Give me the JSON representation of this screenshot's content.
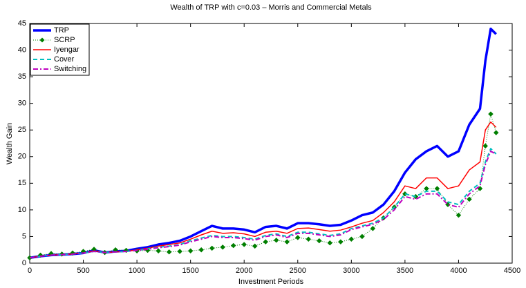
{
  "chart_data": {
    "type": "line",
    "title": "Wealth of TRP with c=0.03 – Morris and Commercial Metals",
    "x_label": "Investment Periods",
    "y_label": "Wealth Gain",
    "x": [
      0,
      100,
      200,
      300,
      400,
      500,
      600,
      700,
      800,
      900,
      1000,
      1100,
      1200,
      1300,
      1400,
      1500,
      1600,
      1700,
      1800,
      1900,
      2000,
      2100,
      2200,
      2300,
      2400,
      2500,
      2600,
      2700,
      2800,
      2900,
      3000,
      3100,
      3200,
      3300,
      3400,
      3500,
      3600,
      3700,
      3800,
      3900,
      4000,
      4100,
      4200,
      4250,
      4300,
      4350
    ],
    "series": [
      {
        "name": "TRP",
        "color": "#0000ff",
        "width": 3.5,
        "dash": "none",
        "marker": "none",
        "values": [
          1,
          1.3,
          1.5,
          1.6,
          1.7,
          1.9,
          2.4,
          2.0,
          2.2,
          2.3,
          2.7,
          3.0,
          3.5,
          3.8,
          4.2,
          5.0,
          6.0,
          7.0,
          6.5,
          6.5,
          6.3,
          5.8,
          6.8,
          7.0,
          6.5,
          7.5,
          7.5,
          7.3,
          7.0,
          7.2,
          8.0,
          9.0,
          9.5,
          11,
          13.5,
          17,
          19.5,
          21,
          22,
          20,
          21,
          26,
          29,
          38,
          44,
          43
        ]
      },
      {
        "name": "SCRP",
        "color": "#007f00",
        "width": 1,
        "dash": "1 2",
        "marker": "diamond",
        "values": [
          1,
          1.5,
          1.8,
          1.7,
          1.9,
          2.2,
          2.6,
          2.0,
          2.5,
          2.4,
          2.3,
          2.4,
          2.3,
          2.1,
          2.2,
          2.3,
          2.5,
          2.8,
          3.0,
          3.3,
          3.5,
          3.2,
          4.0,
          4.3,
          4.0,
          4.8,
          4.5,
          4.2,
          3.8,
          4.0,
          4.5,
          5.0,
          6.5,
          8.5,
          10.5,
          13,
          12.5,
          14,
          14,
          11,
          9,
          12,
          14,
          22,
          28,
          24.5
        ]
      },
      {
        "name": "Iyengar",
        "color": "#ff0000",
        "width": 1.5,
        "dash": "none",
        "marker": "none",
        "values": [
          1,
          1.3,
          1.5,
          1.6,
          1.7,
          1.9,
          2.3,
          2.0,
          2.1,
          2.2,
          2.5,
          2.8,
          3.2,
          3.5,
          3.8,
          4.5,
          5.3,
          6.0,
          5.6,
          5.7,
          5.5,
          5.0,
          5.8,
          6.0,
          5.6,
          6.5,
          6.6,
          6.3,
          6.0,
          6.2,
          6.8,
          7.5,
          8.0,
          9.5,
          11.5,
          14.5,
          14.0,
          16.0,
          16.0,
          14.0,
          14.5,
          17.5,
          19,
          25,
          26.5,
          25.5
        ]
      },
      {
        "name": "Cover",
        "color": "#00bfbf",
        "width": 2,
        "dash": "6 4",
        "marker": "none",
        "values": [
          1,
          1.3,
          1.5,
          1.6,
          1.7,
          1.9,
          2.2,
          2.0,
          2.1,
          2.2,
          2.4,
          2.7,
          3.0,
          3.2,
          3.5,
          4.2,
          4.7,
          5.2,
          5.0,
          5.0,
          4.8,
          4.5,
          5.2,
          5.5,
          5.0,
          5.8,
          5.8,
          5.5,
          5.2,
          5.5,
          6.5,
          7.0,
          7.5,
          8.5,
          10.5,
          13,
          12.5,
          13.5,
          13.5,
          11.5,
          11,
          13.5,
          15,
          19,
          21.5,
          20.5
        ]
      },
      {
        "name": "Switching",
        "color": "#bf00bf",
        "width": 2,
        "dash": "7 3 2 3",
        "marker": "none",
        "values": [
          1,
          1.3,
          1.5,
          1.6,
          1.7,
          1.9,
          2.2,
          2.0,
          2.1,
          2.2,
          2.4,
          2.6,
          2.9,
          3.1,
          3.4,
          4.0,
          4.5,
          5.0,
          4.8,
          4.8,
          4.6,
          4.3,
          5.0,
          5.3,
          4.8,
          5.6,
          5.6,
          5.3,
          5.0,
          5.3,
          6.3,
          6.8,
          7.3,
          8.2,
          10,
          12.5,
          12,
          13,
          13,
          11,
          10.5,
          13,
          14.5,
          18.5,
          21,
          20.5
        ]
      }
    ],
    "xlim": [
      0,
      4500
    ],
    "xticks": [
      0,
      500,
      1000,
      1500,
      2000,
      2500,
      3000,
      3500,
      4000,
      4500
    ],
    "ylim": [
      0,
      45
    ],
    "yticks": [
      0,
      5,
      10,
      15,
      20,
      25,
      30,
      35,
      40,
      45
    ],
    "grid": false,
    "legend": "upper-left"
  }
}
